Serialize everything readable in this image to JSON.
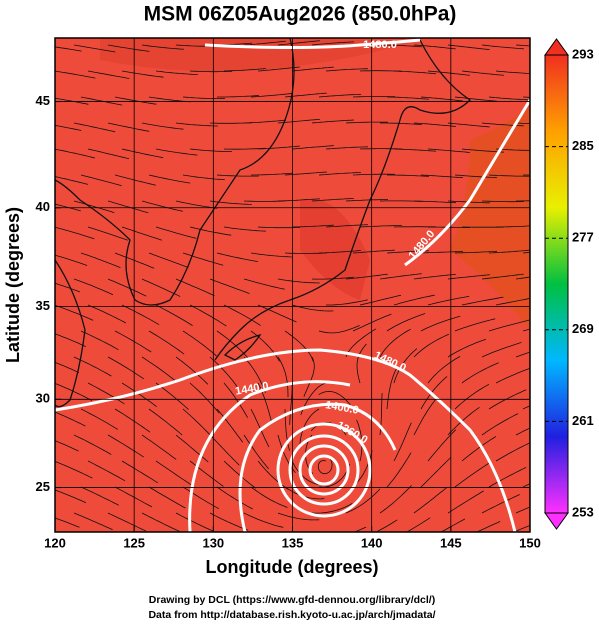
{
  "chart_data": {
    "type": "map",
    "title": "MSM 06Z05Aug2026 (850.0hPa)",
    "x_label": "Longitude (degrees)",
    "y_label": "Latitude  (degrees)",
    "xlim": [
      120,
      150
    ],
    "ylim": [
      22.4,
      47.8
    ],
    "y_projection": "mercator",
    "xticks": [
      120,
      125,
      130,
      135,
      140,
      145,
      150
    ],
    "yticks": [
      25,
      30,
      35,
      40,
      45
    ],
    "grid": true,
    "field_color": "#ee4b3b",
    "colorbar": {
      "lim": [
        253,
        293
      ],
      "ticks": [
        253,
        261,
        269,
        277,
        285,
        293
      ],
      "colors": [
        "#ff30ff",
        "#2020e0",
        "#00b8ff",
        "#00c040",
        "#e8f000",
        "#ffa000",
        "#f03020"
      ]
    },
    "contour_labels": [
      "1480.0",
      "1480.0",
      "1480.0",
      "1440.0",
      "1400.0",
      "1360.0"
    ]
  },
  "credits": [
    "Drawing by DCL (https://www.gfd-dennou.org/library/dcl/)",
    "Data from http://database.rish.kyoto-u.ac.jp/arch/jmadata/"
  ]
}
